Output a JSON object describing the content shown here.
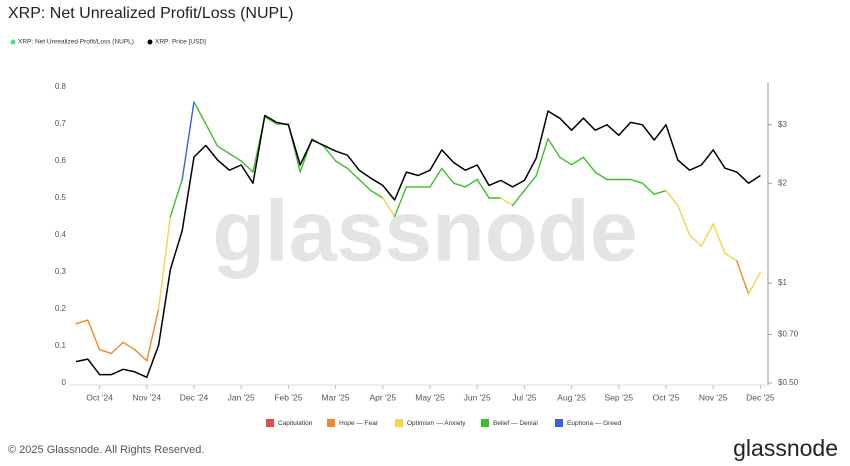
{
  "chart_data": {
    "type": "line",
    "title": "XRP: Net Unrealized Profit/Loss (NUPL)",
    "nupl_name": "XRP: Net Unrealized Profit/Loss (NUPL)",
    "nupl_color": "#4ade80",
    "watermark": "glassnode",
    "footer": "© 2025 Glassnode. All Rights Reserved.",
    "logo": "glassnode",
    "categories": [
      null,
      null,
      "Oct '24",
      null,
      null,
      null,
      "Nov '24",
      null,
      null,
      null,
      "Dec '24",
      null,
      null,
      null,
      "Jan '25",
      null,
      null,
      null,
      "Feb '25",
      null,
      null,
      null,
      "Mar '25",
      null,
      null,
      null,
      "Apr '25",
      null,
      null,
      null,
      "May '25",
      null,
      null,
      null,
      "Jun '25",
      null,
      null,
      null,
      "Jul '25",
      null,
      null,
      null,
      "Aug '25",
      null,
      null,
      null,
      "Sep '25",
      null,
      null,
      null,
      "Oct '25",
      null,
      null,
      null,
      "Nov '25",
      null,
      null,
      null,
      "Dec '25"
    ],
    "ylim": [
      0,
      0.8
    ],
    "yticks": [
      0,
      0.1,
      0.2,
      0.3,
      0.4,
      0.5,
      0.6,
      0.7,
      0.8
    ],
    "y2lim": [
      0.5,
      3.9
    ],
    "y2scale": "log",
    "y2ticks": [
      {
        "value": 3,
        "label": "$3"
      },
      {
        "value": 2,
        "label": "$2"
      },
      {
        "value": 1,
        "label": "$1"
      },
      {
        "value": 0.7,
        "label": "$0.70"
      },
      {
        "value": 0.5,
        "label": "$0.50"
      }
    ],
    "grid": false,
    "series": [
      {
        "name": "Capitulation",
        "color": "#e5484d",
        "values": [
          null,
          null,
          null,
          null,
          null,
          null,
          null,
          null,
          null,
          null,
          null,
          null,
          null,
          null,
          null,
          null,
          null,
          null,
          null,
          null,
          null,
          null,
          null,
          null,
          null,
          null,
          null,
          null,
          null,
          null,
          null,
          null,
          null,
          null,
          null,
          null,
          null,
          null,
          null,
          null,
          null,
          null,
          null,
          null,
          null,
          null,
          null,
          null,
          null,
          null,
          null,
          null,
          null,
          null,
          null,
          null,
          null,
          null,
          null
        ]
      },
      {
        "name": "Hope — Fear",
        "color": "#f0892a",
        "values": [
          0.16,
          0.17,
          0.09,
          0.08,
          0.11,
          0.09,
          0.06,
          0.2,
          null,
          null,
          null,
          null,
          null,
          null,
          null,
          null,
          null,
          null,
          null,
          null,
          null,
          null,
          null,
          null,
          null,
          null,
          null,
          null,
          null,
          null,
          null,
          null,
          null,
          null,
          null,
          null,
          null,
          null,
          null,
          null,
          null,
          null,
          null,
          null,
          null,
          null,
          null,
          null,
          null,
          null,
          null,
          null,
          null,
          null,
          null,
          null,
          null,
          0.24,
          null
        ]
      },
      {
        "name": "Optimism — Anxiety",
        "color": "#f2d54a",
        "values": [
          null,
          null,
          null,
          null,
          null,
          null,
          null,
          null,
          0.45,
          null,
          null,
          null,
          null,
          null,
          null,
          null,
          null,
          null,
          null,
          null,
          null,
          null,
          null,
          null,
          null,
          null,
          null,
          0.45,
          null,
          null,
          null,
          null,
          null,
          null,
          null,
          null,
          null,
          0.48,
          null,
          null,
          null,
          null,
          null,
          null,
          null,
          null,
          null,
          null,
          null,
          null,
          null,
          0.48,
          0.4,
          0.37,
          0.43,
          0.35,
          0.33,
          null,
          0.3
        ]
      },
      {
        "name": "Belief — Denial",
        "color": "#3cc02a",
        "values": [
          null,
          null,
          null,
          null,
          null,
          null,
          null,
          null,
          null,
          0.55,
          null,
          0.7,
          0.64,
          0.62,
          0.6,
          0.57,
          0.72,
          0.7,
          0.7,
          0.57,
          0.66,
          0.64,
          0.6,
          0.58,
          0.55,
          0.52,
          0.5,
          null,
          0.53,
          0.53,
          0.53,
          0.58,
          0.54,
          0.53,
          0.55,
          0.5,
          0.5,
          null,
          0.52,
          0.56,
          0.66,
          0.61,
          0.59,
          0.61,
          0.57,
          0.55,
          0.55,
          0.55,
          0.54,
          0.51,
          0.52,
          null,
          null,
          null,
          null,
          null,
          null,
          null,
          null
        ]
      },
      {
        "name": "Euphoria — Greed",
        "color": "#3b5fe0",
        "values": [
          null,
          null,
          null,
          null,
          null,
          null,
          null,
          null,
          null,
          null,
          0.76,
          null,
          null,
          null,
          null,
          null,
          null,
          null,
          null,
          null,
          null,
          null,
          null,
          null,
          null,
          null,
          null,
          null,
          null,
          null,
          null,
          null,
          null,
          null,
          null,
          null,
          null,
          null,
          null,
          null,
          null,
          null,
          null,
          null,
          null,
          null,
          null,
          null,
          null,
          null,
          null,
          null,
          null,
          null,
          null,
          null,
          null,
          null,
          null
        ]
      },
      {
        "name": "XRP: Price [USD]",
        "color": "#000000",
        "axis": "y2",
        "values": [
          0.58,
          0.59,
          0.53,
          0.53,
          0.55,
          0.54,
          0.52,
          0.65,
          1.1,
          1.44,
          2.4,
          2.6,
          2.35,
          2.19,
          2.27,
          2.0,
          3.2,
          3.05,
          3.0,
          2.27,
          2.7,
          2.6,
          2.5,
          2.43,
          2.19,
          2.07,
          1.97,
          1.78,
          2.16,
          2.11,
          2.19,
          2.52,
          2.31,
          2.19,
          2.27,
          1.97,
          2.04,
          1.95,
          2.04,
          2.38,
          3.3,
          3.14,
          2.89,
          3.14,
          2.89,
          3.0,
          2.79,
          3.05,
          3.0,
          2.7,
          3.0,
          2.35,
          2.19,
          2.27,
          2.52,
          2.22,
          2.16,
          2.0,
          2.11
        ]
      }
    ]
  }
}
